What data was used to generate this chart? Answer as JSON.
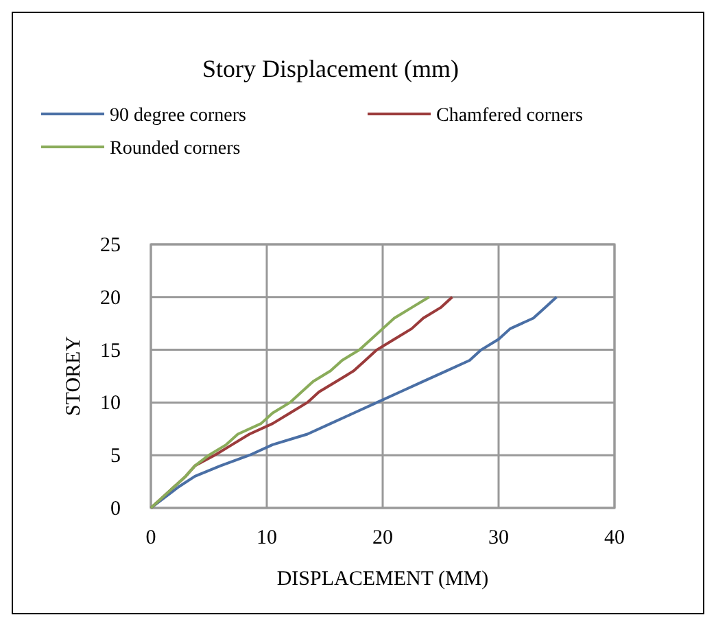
{
  "chart_data": {
    "type": "line",
    "title": "Story Displacement (mm)",
    "xlabel": "DISPLACEMENT (MM)",
    "ylabel": "STOREY",
    "xlim": [
      0,
      40
    ],
    "xticks": [
      0,
      10,
      20,
      30,
      40
    ],
    "ylim": [
      0,
      25
    ],
    "yticks": [
      0,
      5,
      10,
      15,
      20,
      25
    ],
    "grid": true,
    "legend": "top",
    "marker": "none",
    "series": [
      {
        "name": "90 degree corners",
        "color": "#4a6fa5",
        "x": [
          0,
          1.2,
          2.4,
          3.8,
          6,
          8.5,
          10.5,
          13.5,
          15.5,
          17.5,
          19.5,
          21.5,
          23.5,
          25.5,
          27.5,
          28.5,
          30,
          31,
          33,
          34,
          35
        ],
        "values": [
          0,
          1,
          2,
          3,
          4,
          5,
          6,
          7,
          8,
          9,
          10,
          11,
          12,
          13,
          14,
          15,
          16,
          17,
          18,
          19,
          20
        ]
      },
      {
        "name": "Chamfered corners",
        "color": "#9b3b3b",
        "x": [
          0,
          1,
          2,
          3,
          3.8,
          5.5,
          7,
          8.5,
          10.5,
          12,
          13.5,
          14.5,
          16,
          17.5,
          18.5,
          19.5,
          21,
          22.5,
          23.5,
          25,
          26
        ],
        "values": [
          0,
          1,
          2,
          3,
          4,
          5,
          6,
          7,
          8,
          9,
          10,
          11,
          12,
          13,
          14,
          15,
          16,
          17,
          18,
          19,
          20
        ]
      },
      {
        "name": "Rounded corners",
        "color": "#8aac5a",
        "x": [
          0,
          1,
          2,
          3,
          3.8,
          5,
          6.5,
          7.5,
          9.5,
          10.5,
          12,
          13,
          14,
          15.5,
          16.5,
          18,
          19,
          20,
          21,
          22.5,
          24
        ],
        "values": [
          0,
          1,
          2,
          3,
          4,
          5,
          6,
          7,
          8,
          9,
          10,
          11,
          12,
          13,
          14,
          15,
          16,
          17,
          18,
          19,
          20
        ]
      }
    ]
  }
}
